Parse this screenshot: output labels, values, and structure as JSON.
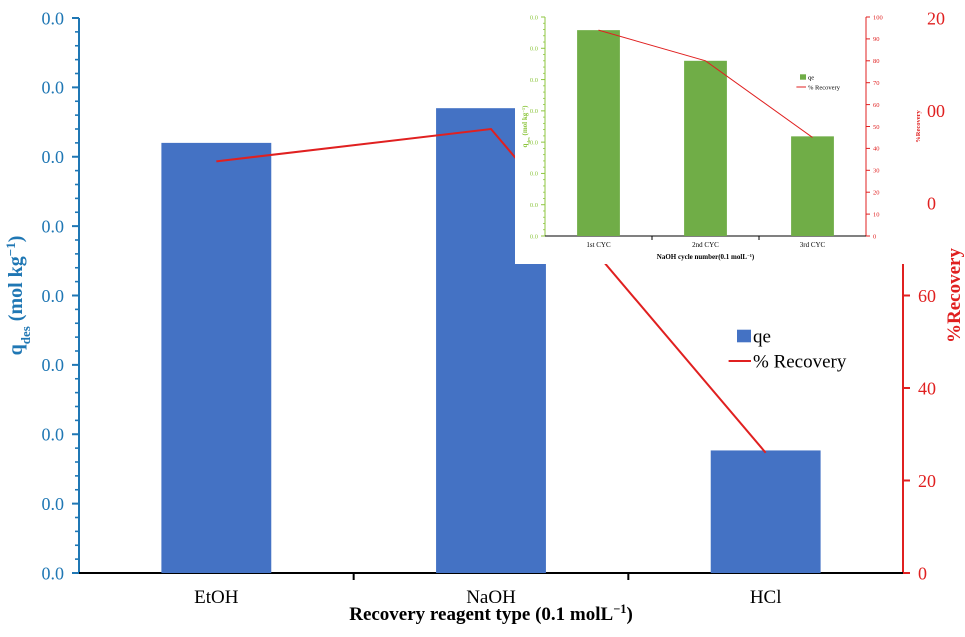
{
  "colors": {
    "bar_main": "#4472C4",
    "bar_inset": "#70AD47",
    "line": "#E02020",
    "left_axis": "#1F77B4",
    "right_axis": "#E02020",
    "inset_left_axis": "#8DC63F",
    "text": "#000000"
  },
  "chart_data": [
    {
      "type": "bar",
      "role": "main",
      "categories": [
        "EtOH",
        "NaOH",
        "HCl"
      ],
      "xlabel": "Recovery reagent type (0.1 molL",
      "xlabel_sup": "−1",
      "xlabel_tail": ")",
      "ylabel": "q",
      "ylabel_sub": "des",
      "ylabel_tail": " (mol kg",
      "ylabel_sup": "−1",
      "ylabel_close": ")",
      "y2label": "%Recovery",
      "left_tick_labels": [
        "0.0",
        "0.0",
        "0.0",
        "0.0",
        "0.0",
        "0.0",
        "0.0",
        "0.0",
        "0.0"
      ],
      "y2lim": [
        0,
        120
      ],
      "y2ticks": [
        0,
        20,
        40,
        60,
        80,
        100,
        120
      ],
      "series": [
        {
          "name": "qe",
          "kind": "bar",
          "axis": "right",
          "values": [
            93,
            100.5,
            26.5
          ]
        },
        {
          "name": "% Recovery",
          "kind": "line",
          "axis": "right",
          "values": [
            89,
            96,
            26
          ]
        }
      ],
      "legend": {
        "position": "right",
        "entries": [
          "qe",
          "% Recovery"
        ]
      }
    },
    {
      "type": "bar",
      "role": "inset",
      "categories": [
        "1st CYC",
        "2nd CYC",
        "3rd CYC"
      ],
      "xlabel": "NaOH cycle number(0.1 molL",
      "xlabel_sup": "−1",
      "xlabel_tail": ")",
      "ylabel": "q",
      "ylabel_sub": "des",
      "ylabel_tail": " (mol kg",
      "ylabel_sup": "−1",
      "ylabel_close": ")",
      "y2label": "%Recovery",
      "left_tick_labels": [
        "0.0",
        "0.0",
        "0.0",
        "0.0",
        "0.0",
        "0.0",
        "0.0",
        "0.0"
      ],
      "y2lim": [
        0,
        100
      ],
      "y2ticks": [
        0,
        10,
        20,
        30,
        40,
        50,
        60,
        70,
        80,
        90,
        100
      ],
      "series": [
        {
          "name": "qe",
          "kind": "bar",
          "axis": "right",
          "values": [
            94,
            80,
            45.5
          ]
        },
        {
          "name": "% Recovery",
          "kind": "line",
          "axis": "right",
          "values": [
            94,
            80,
            45
          ]
        }
      ],
      "legend": {
        "position": "right",
        "entries": [
          "qe",
          "% Recovery"
        ]
      }
    }
  ]
}
